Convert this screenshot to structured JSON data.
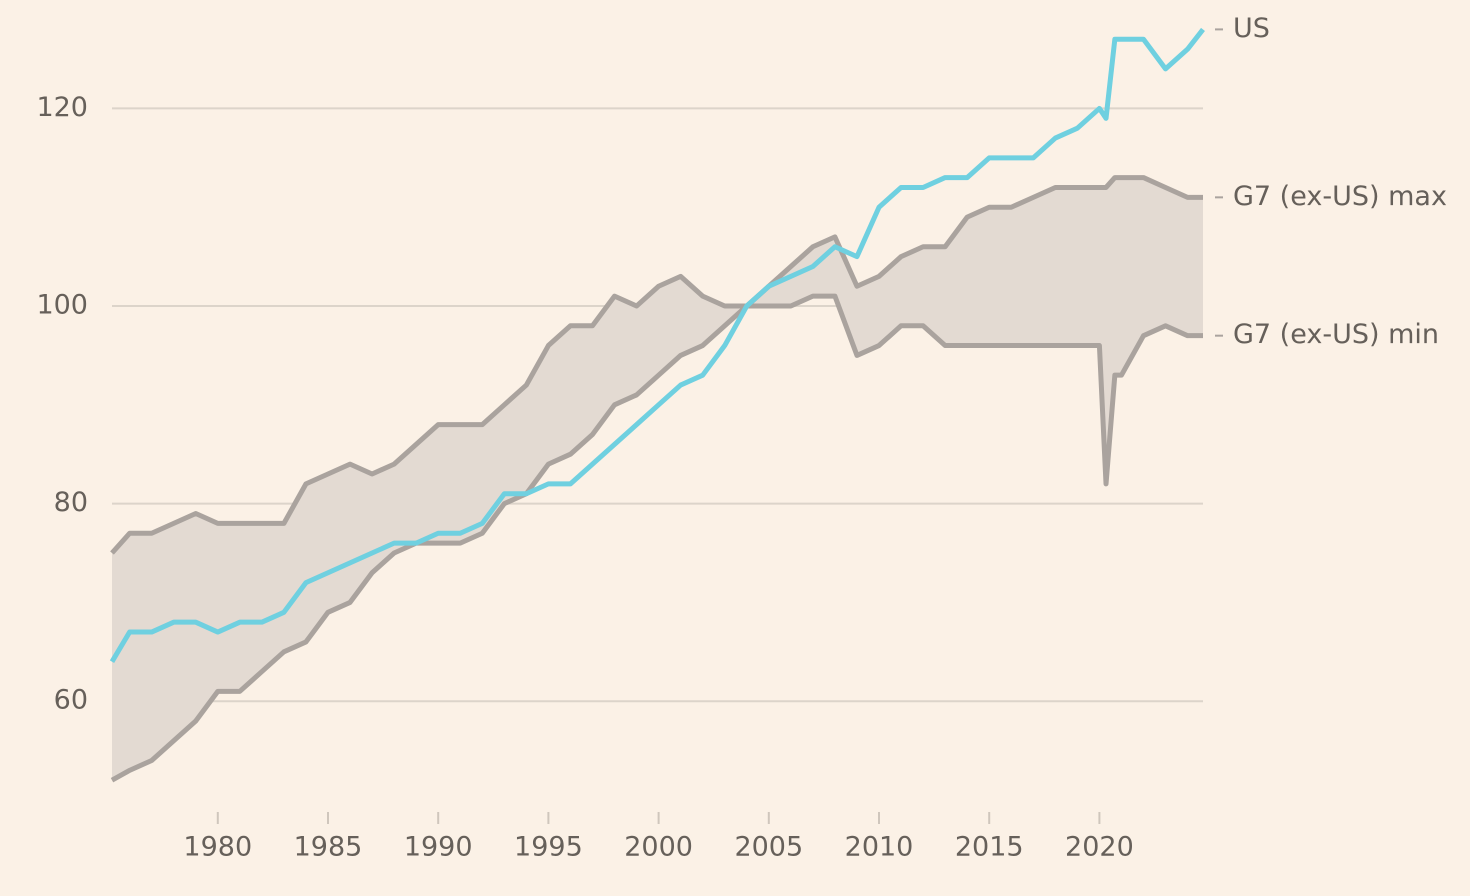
{
  "chart_data": {
    "type": "line",
    "x": [
      1975.2,
      1976,
      1977,
      1978,
      1979,
      1980,
      1981,
      1982,
      1983,
      1984,
      1985,
      1986,
      1987,
      1988,
      1989,
      1990,
      1991,
      1992,
      1993,
      1994,
      1995,
      1996,
      1997,
      1998,
      1999,
      2000,
      2001,
      2002,
      2003,
      2004,
      2005,
      2006,
      2007,
      2008,
      2009,
      2010,
      2011,
      2012,
      2013,
      2014,
      2015,
      2016,
      2017,
      2018,
      2019,
      2020,
      2020.3,
      2020.7,
      2021,
      2022,
      2023,
      2024,
      2024.7
    ],
    "series": [
      {
        "name": "US",
        "color": "#6fd0e0",
        "values": [
          64,
          67,
          67,
          68,
          68,
          67,
          68,
          68,
          69,
          72,
          73,
          74,
          75,
          76,
          76,
          77,
          77,
          78,
          81,
          81,
          82,
          82,
          84,
          86,
          88,
          90,
          92,
          93,
          96,
          100,
          102,
          103,
          104,
          106,
          105,
          110,
          112,
          112,
          113,
          113,
          115,
          115,
          115,
          117,
          118,
          120,
          119,
          127,
          127,
          127,
          124,
          126,
          128
        ]
      },
      {
        "name": "G7 (ex-US) max",
        "color": "#aaa39e",
        "values": [
          75,
          77,
          77,
          78,
          79,
          78,
          78,
          78,
          78,
          82,
          83,
          84,
          83,
          84,
          86,
          88,
          88,
          88,
          90,
          92,
          96,
          98,
          98,
          101,
          100,
          102,
          103,
          101,
          100,
          100,
          102,
          104,
          106,
          107,
          102,
          103,
          105,
          106,
          106,
          109,
          110,
          110,
          111,
          112,
          112,
          112,
          112,
          113,
          113,
          113,
          112,
          111,
          111
        ]
      },
      {
        "name": "G7 (ex-US) min",
        "color": "#aaa39e",
        "values": [
          52,
          53,
          54,
          56,
          58,
          61,
          61,
          63,
          65,
          66,
          69,
          70,
          73,
          75,
          76,
          76,
          76,
          77,
          80,
          81,
          84,
          85,
          87,
          90,
          91,
          93,
          95,
          96,
          98,
          100,
          100,
          100,
          101,
          101,
          95,
          96,
          98,
          98,
          96,
          96,
          96,
          96,
          96,
          96,
          96,
          96,
          82,
          93,
          93,
          97,
          98,
          97,
          97
        ]
      }
    ],
    "band_color": "#e3dad2",
    "xlim": [
      1975.2,
      2024.7
    ],
    "xticks": [
      1980,
      1985,
      1990,
      1995,
      2000,
      2005,
      2010,
      2015,
      2020
    ],
    "ylim": [
      50,
      128
    ],
    "yticks": [
      60,
      80,
      100,
      120
    ],
    "grid": true
  }
}
